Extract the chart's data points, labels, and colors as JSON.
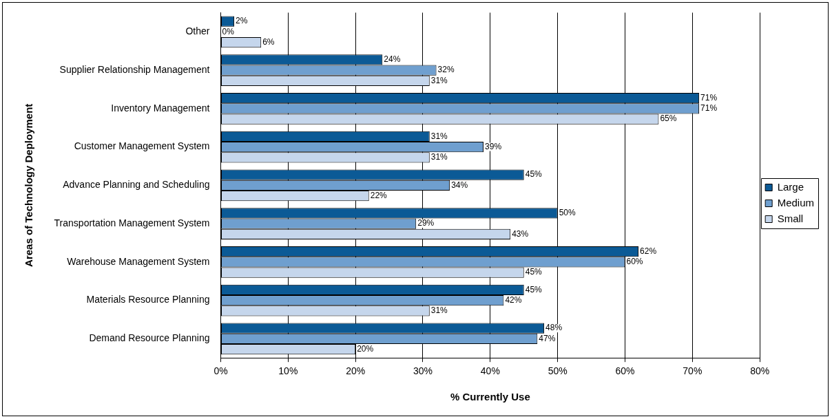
{
  "chart_data": {
    "type": "bar",
    "orientation": "horizontal",
    "xlabel": "% Currently Use",
    "ylabel": "Areas of Technology Deployment",
    "categories": [
      "Other",
      "Supplier Relationship Management",
      "Inventory Management",
      "Customer Management System",
      "Advance Planning and Scheduling",
      "Transportation Management System",
      "Warehouse Management System",
      "Materials Resource Planning",
      "Demand Resource Planning"
    ],
    "series": [
      {
        "name": "Large",
        "color": "#0b5a96",
        "values": [
          2,
          24,
          71,
          31,
          45,
          50,
          62,
          45,
          48
        ],
        "value_labels": [
          "2%",
          "24%",
          "71%",
          "31%",
          "45%",
          "50%",
          "62%",
          "45%",
          "48%"
        ]
      },
      {
        "name": "Medium",
        "color": "#6f9fcf",
        "values": [
          0,
          32,
          71,
          39,
          34,
          29,
          60,
          42,
          47
        ],
        "value_labels": [
          "0%",
          "32%",
          "71%",
          "39%",
          "34%",
          "29%",
          "60%",
          "42%",
          "47%"
        ]
      },
      {
        "name": "Small",
        "color": "#c5d6ec",
        "values": [
          6,
          31,
          65,
          31,
          22,
          43,
          45,
          31,
          20
        ],
        "value_labels": [
          "6%",
          "31%",
          "65%",
          "31%",
          "22%",
          "43%",
          "45%",
          "31%",
          "20%"
        ]
      }
    ],
    "xlim": [
      0,
      80
    ],
    "xticks": [
      {
        "value": 0,
        "label": "0%"
      },
      {
        "value": 10,
        "label": "10%"
      },
      {
        "value": 20,
        "label": "20%"
      },
      {
        "value": 30,
        "label": "30%"
      },
      {
        "value": 40,
        "label": "40%"
      },
      {
        "value": 50,
        "label": "50%"
      },
      {
        "value": 60,
        "label": "60%"
      },
      {
        "value": 70,
        "label": "70%"
      },
      {
        "value": 80,
        "label": "80%"
      }
    ],
    "grid": "x",
    "legend": "right"
  }
}
